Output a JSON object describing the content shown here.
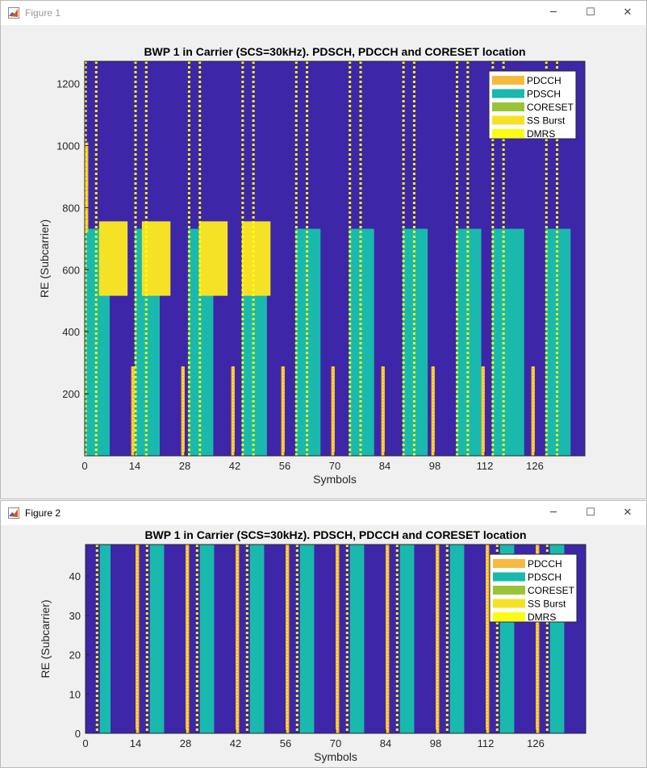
{
  "colors": {
    "background": "#3e26a8",
    "pdcch": "#f8ba3e",
    "pdsch": "#1ab9ad",
    "coreset": "#9ac437",
    "ss_burst": "#f5e226",
    "dmrs": "#fbfc0f"
  },
  "windows": [
    {
      "title": "Figure 1",
      "minimize": "─",
      "maximize": "☐",
      "close": "✕"
    },
    {
      "title": "Figure 2",
      "minimize": "─",
      "maximize": "☐",
      "close": "✕"
    }
  ],
  "chart_data": [
    {
      "type": "heatmap",
      "title": "BWP 1 in Carrier (SCS=30kHz). PDSCH, PDCCH and CORESET location",
      "xlabel": "Symbols",
      "ylabel": "RE (Subcarrier)",
      "xlim": [
        0,
        140
      ],
      "ylim": [
        0,
        1272
      ],
      "xticks": [
        0,
        14,
        28,
        42,
        56,
        70,
        84,
        98,
        112,
        126
      ],
      "yticks": [
        200,
        400,
        600,
        800,
        1000,
        1200
      ],
      "legend": [
        "PDCCH",
        "PDSCH",
        "CORESET",
        "SS Burst",
        "DMRS"
      ],
      "legend_position": "top-right",
      "pdsch_blocks": [
        {
          "x": [
            0,
            7
          ],
          "y": [
            0,
            732
          ]
        },
        {
          "x": [
            14,
            21
          ],
          "y": [
            0,
            732
          ]
        },
        {
          "x": [
            29,
            36
          ],
          "y": [
            0,
            732
          ]
        },
        {
          "x": [
            44,
            51
          ],
          "y": [
            0,
            732
          ]
        },
        {
          "x": [
            59,
            66
          ],
          "y": [
            0,
            732
          ]
        },
        {
          "x": [
            74,
            81
          ],
          "y": [
            0,
            732
          ]
        },
        {
          "x": [
            89,
            96
          ],
          "y": [
            0,
            732
          ]
        },
        {
          "x": [
            104,
            111
          ],
          "y": [
            0,
            732
          ]
        },
        {
          "x": [
            114,
            123
          ],
          "y": [
            0,
            732
          ]
        },
        {
          "x": [
            129,
            136
          ],
          "y": [
            0,
            732
          ]
        }
      ],
      "pdcch": [
        {
          "x": [
            0,
            1
          ],
          "y": [
            720,
            1010
          ]
        },
        {
          "x": [
            13,
            14
          ],
          "y": [
            0,
            288
          ]
        },
        {
          "x": [
            27,
            28
          ],
          "y": [
            0,
            288
          ]
        },
        {
          "x": [
            41,
            42
          ],
          "y": [
            0,
            288
          ]
        },
        {
          "x": [
            55,
            56
          ],
          "y": [
            0,
            288
          ]
        },
        {
          "x": [
            69,
            70
          ],
          "y": [
            0,
            288
          ]
        },
        {
          "x": [
            83,
            84
          ],
          "y": [
            0,
            288
          ]
        },
        {
          "x": [
            97,
            98
          ],
          "y": [
            0,
            288
          ]
        },
        {
          "x": [
            111,
            112
          ],
          "y": [
            0,
            288
          ]
        },
        {
          "x": [
            125,
            126
          ],
          "y": [
            0,
            288
          ]
        }
      ],
      "dmrs_columns": [
        0,
        3,
        14,
        17,
        29,
        32,
        44,
        47,
        59,
        62,
        74,
        77,
        89,
        92,
        104,
        107,
        114,
        117,
        129,
        132
      ],
      "ss_burst": [
        {
          "x": [
            4,
            12
          ],
          "y": [
            516,
            756
          ]
        },
        {
          "x": [
            16,
            24
          ],
          "y": [
            516,
            756
          ]
        },
        {
          "x": [
            32,
            40
          ],
          "y": [
            516,
            756
          ]
        },
        {
          "x": [
            44,
            52
          ],
          "y": [
            516,
            756
          ]
        }
      ]
    },
    {
      "type": "heatmap",
      "title": "BWP 1 in Carrier (SCS=30kHz). PDSCH, PDCCH and CORESET location",
      "xlabel": "Symbols",
      "ylabel": "RE (Subcarrier)",
      "xlim": [
        0,
        140
      ],
      "ylim": [
        0,
        48
      ],
      "xticks": [
        0,
        14,
        28,
        42,
        56,
        70,
        84,
        98,
        112,
        126
      ],
      "yticks": [
        0,
        10,
        20,
        30,
        40
      ],
      "legend": [
        "PDCCH",
        "PDSCH",
        "CORESET",
        "SS Burst",
        "DMRS"
      ],
      "legend_position": "top-right",
      "pdsch_blocks": [
        {
          "x": [
            4,
            7
          ],
          "y": [
            0,
            48
          ]
        },
        {
          "x": [
            18,
            22
          ],
          "y": [
            0,
            48
          ]
        },
        {
          "x": [
            32,
            36
          ],
          "y": [
            0,
            48
          ]
        },
        {
          "x": [
            46,
            50
          ],
          "y": [
            0,
            48
          ]
        },
        {
          "x": [
            60,
            64
          ],
          "y": [
            0,
            48
          ]
        },
        {
          "x": [
            74,
            78
          ],
          "y": [
            0,
            48
          ]
        },
        {
          "x": [
            88,
            92
          ],
          "y": [
            0,
            48
          ]
        },
        {
          "x": [
            102,
            106
          ],
          "y": [
            0,
            48
          ]
        },
        {
          "x": [
            116,
            120
          ],
          "y": [
            0,
            48
          ]
        },
        {
          "x": [
            130,
            134
          ],
          "y": [
            0,
            48
          ]
        }
      ],
      "pdcch": [
        {
          "x": [
            14,
            15
          ],
          "y": [
            0,
            48
          ]
        },
        {
          "x": [
            28,
            29
          ],
          "y": [
            0,
            48
          ]
        },
        {
          "x": [
            42,
            43
          ],
          "y": [
            0,
            48
          ]
        },
        {
          "x": [
            56,
            57
          ],
          "y": [
            0,
            48
          ]
        },
        {
          "x": [
            70,
            71
          ],
          "y": [
            0,
            48
          ]
        },
        {
          "x": [
            84,
            85
          ],
          "y": [
            0,
            48
          ]
        },
        {
          "x": [
            98,
            99
          ],
          "y": [
            0,
            48
          ]
        },
        {
          "x": [
            112,
            113
          ],
          "y": [
            0,
            48
          ]
        },
        {
          "x": [
            126,
            127
          ],
          "y": [
            0,
            48
          ]
        }
      ],
      "dmrs_columns": [
        3,
        17,
        31,
        45,
        59,
        73,
        87,
        101,
        115,
        129
      ]
    }
  ]
}
